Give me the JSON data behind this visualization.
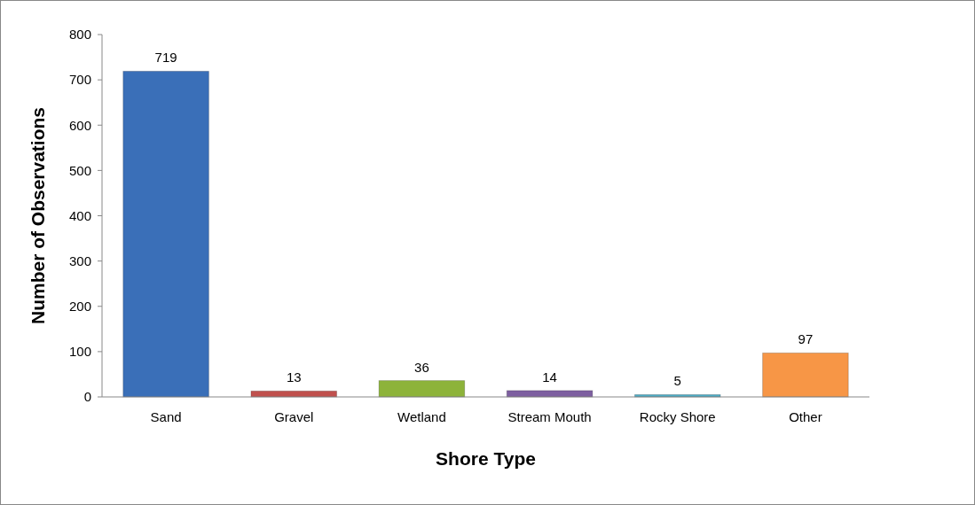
{
  "chart_data": {
    "type": "bar",
    "xlabel": "Shore Type",
    "ylabel": "Number of Observations",
    "categories": [
      "Sand",
      "Gravel",
      "Wetland",
      "Stream Mouth",
      "Rocky Shore",
      "Other"
    ],
    "values": [
      719,
      13,
      36,
      14,
      5,
      97
    ],
    "colors": [
      "#3a6fb8",
      "#c0504d",
      "#8db33a",
      "#7d5fa0",
      "#4bacc6",
      "#f79646"
    ],
    "ylim": [
      0,
      800
    ],
    "yticks": [
      0,
      100,
      200,
      300,
      400,
      500,
      600,
      700,
      800
    ],
    "data_labels": true,
    "grid": false
  }
}
